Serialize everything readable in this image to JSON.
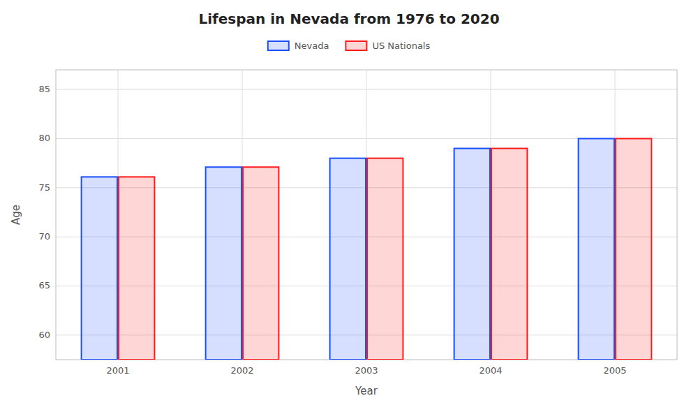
{
  "chart_data": {
    "type": "bar",
    "title": "Lifespan in Nevada from 1976 to 2020",
    "x_label": "Year",
    "y_label": "Age",
    "categories": [
      "2001",
      "2002",
      "2003",
      "2004",
      "2005"
    ],
    "series": [
      {
        "name": "Nevada",
        "color": "#1a4fff",
        "values": [
          76.1,
          77.1,
          78.0,
          79.0,
          80.0
        ]
      },
      {
        "name": "US Nationals",
        "color": "#ff1a1a",
        "values": [
          76.1,
          77.1,
          78.0,
          79.0,
          80.0
        ]
      }
    ],
    "ylim": [
      57.5,
      87
    ],
    "yticks": [
      60,
      65,
      70,
      75,
      80,
      85
    ],
    "grid": true,
    "legend": "top"
  }
}
